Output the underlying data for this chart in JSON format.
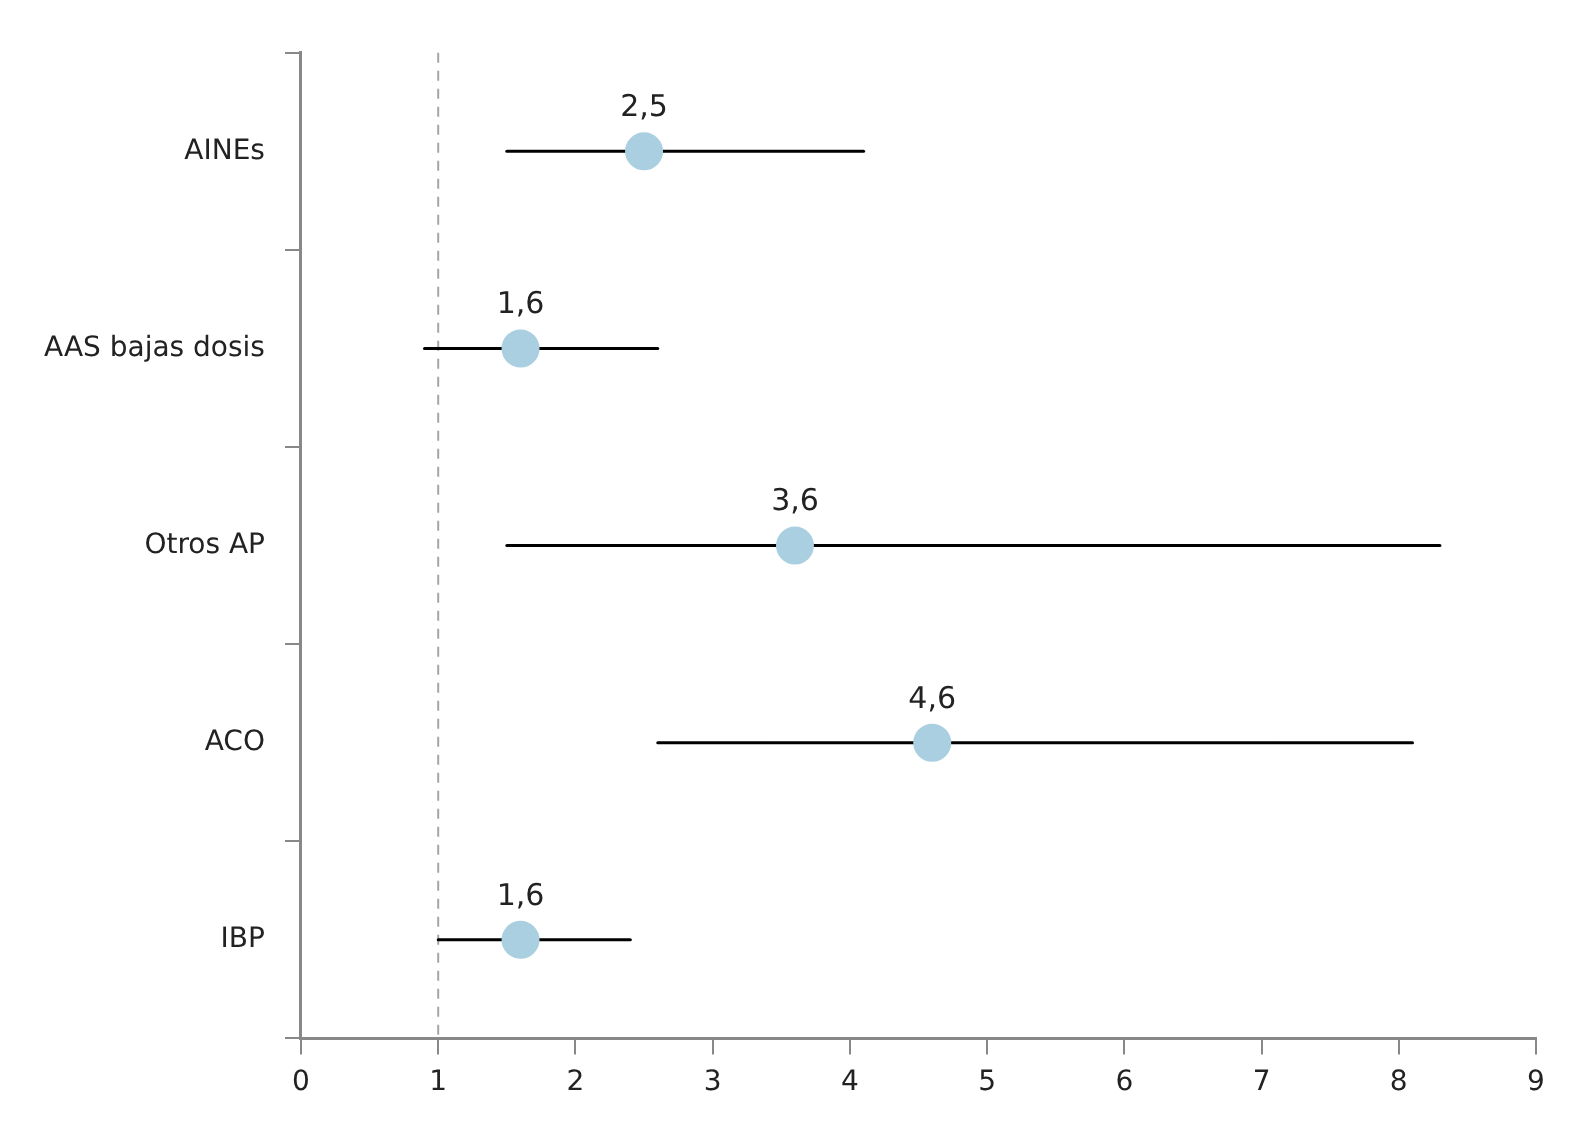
{
  "chart_data": {
    "type": "scatter",
    "orientation": "horizontal",
    "categories": [
      "AINEs",
      "AAS bajas dosis",
      "Otros AP",
      "ACO",
      "IBP"
    ],
    "values": [
      2.5,
      1.6,
      3.6,
      4.6,
      1.6
    ],
    "errors": [
      [
        1.5,
        4.1
      ],
      [
        0.9,
        2.6
      ],
      [
        1.5,
        8.3
      ],
      [
        2.6,
        8.1
      ],
      [
        1.0,
        2.4
      ]
    ],
    "value_labels": [
      "2,5",
      "1,6",
      "3,6",
      "4,6",
      "1,6"
    ],
    "color": "#a9cfe0",
    "marker": "circle",
    "xlim": [
      0,
      9
    ],
    "xticks": [
      0,
      1,
      2,
      3,
      4,
      5,
      6,
      7,
      8,
      9
    ],
    "ref_lines": [
      {
        "axis": "x",
        "value": 1,
        "color": "#a6a6a6",
        "line_style": "dashed"
      }
    ],
    "grid": false,
    "legend": false
  }
}
